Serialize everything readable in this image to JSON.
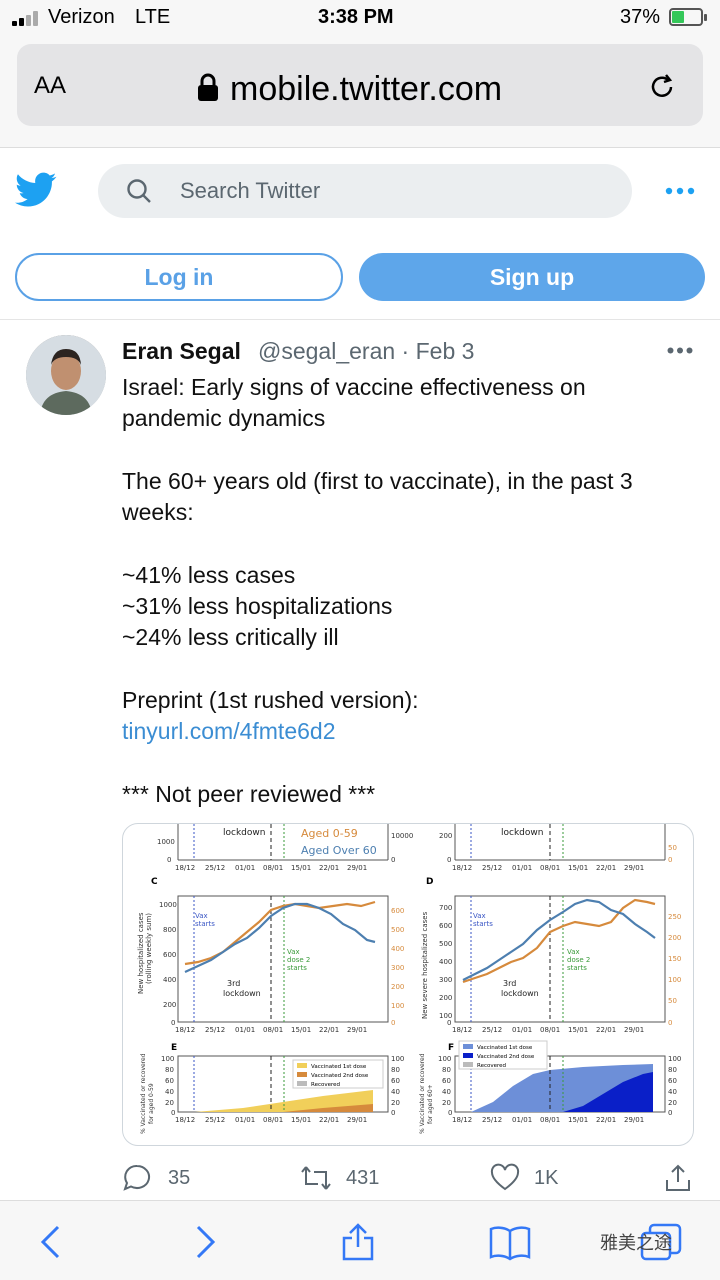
{
  "status_bar": {
    "carrier": "Verizon",
    "network": "LTE",
    "time": "3:38 PM",
    "battery": "37%"
  },
  "browser": {
    "text_size_label": "AA",
    "url": "mobile.twitter.com"
  },
  "header": {
    "search_placeholder": "Search Twitter",
    "login_label": "Log in",
    "signup_label": "Sign up"
  },
  "tweet": {
    "name": "Eran Segal",
    "handle_date": "@segal_eran · Feb 3",
    "lines": [
      "Israel: Early signs of vaccine effectiveness on",
      "pandemic dynamics",
      "The 60+ years old (first to vaccinate), in the past 3",
      "weeks:",
      "~41% less cases",
      "~31% less hospitalizations",
      "~24% less critically ill",
      "Preprint (1st rushed version):"
    ],
    "link": "tinyurl.com/4fmte6d2",
    "footer": "*** Not peer reviewed ***",
    "actions": {
      "replies": "35",
      "retweets": "431",
      "likes": "1K"
    }
  },
  "figure": {
    "panel_c": "C",
    "panel_d": "D",
    "panel_e": "E",
    "panel_f": "F",
    "lockdown": "lockdown",
    "lockdown_3rd": "3rd",
    "vax": "Vax",
    "starts": "starts",
    "dose2": "dose 2",
    "legend_a": "Aged 0-59",
    "legend_b": "Aged Over 60",
    "ylabel_c": "New hospitalized cases",
    "ylabel_c2": "(rolling weekly sum)",
    "ylabel_d": "New severe hospitalized cases",
    "ylabel_e": "% Vaccinated or recovered",
    "ylabel_e2": "for aged 0-59",
    "ylabel_f2": "for aged 60+",
    "leg_v1": "Vaccinated 1st dose",
    "leg_v2": "Vaccinated 2nd dose",
    "leg_rec": "Recovered",
    "xticks": [
      "18/12",
      "25/12",
      "01/01",
      "08/01",
      "15/01",
      "22/01",
      "29/01"
    ]
  },
  "watermark": "雅美之途"
}
